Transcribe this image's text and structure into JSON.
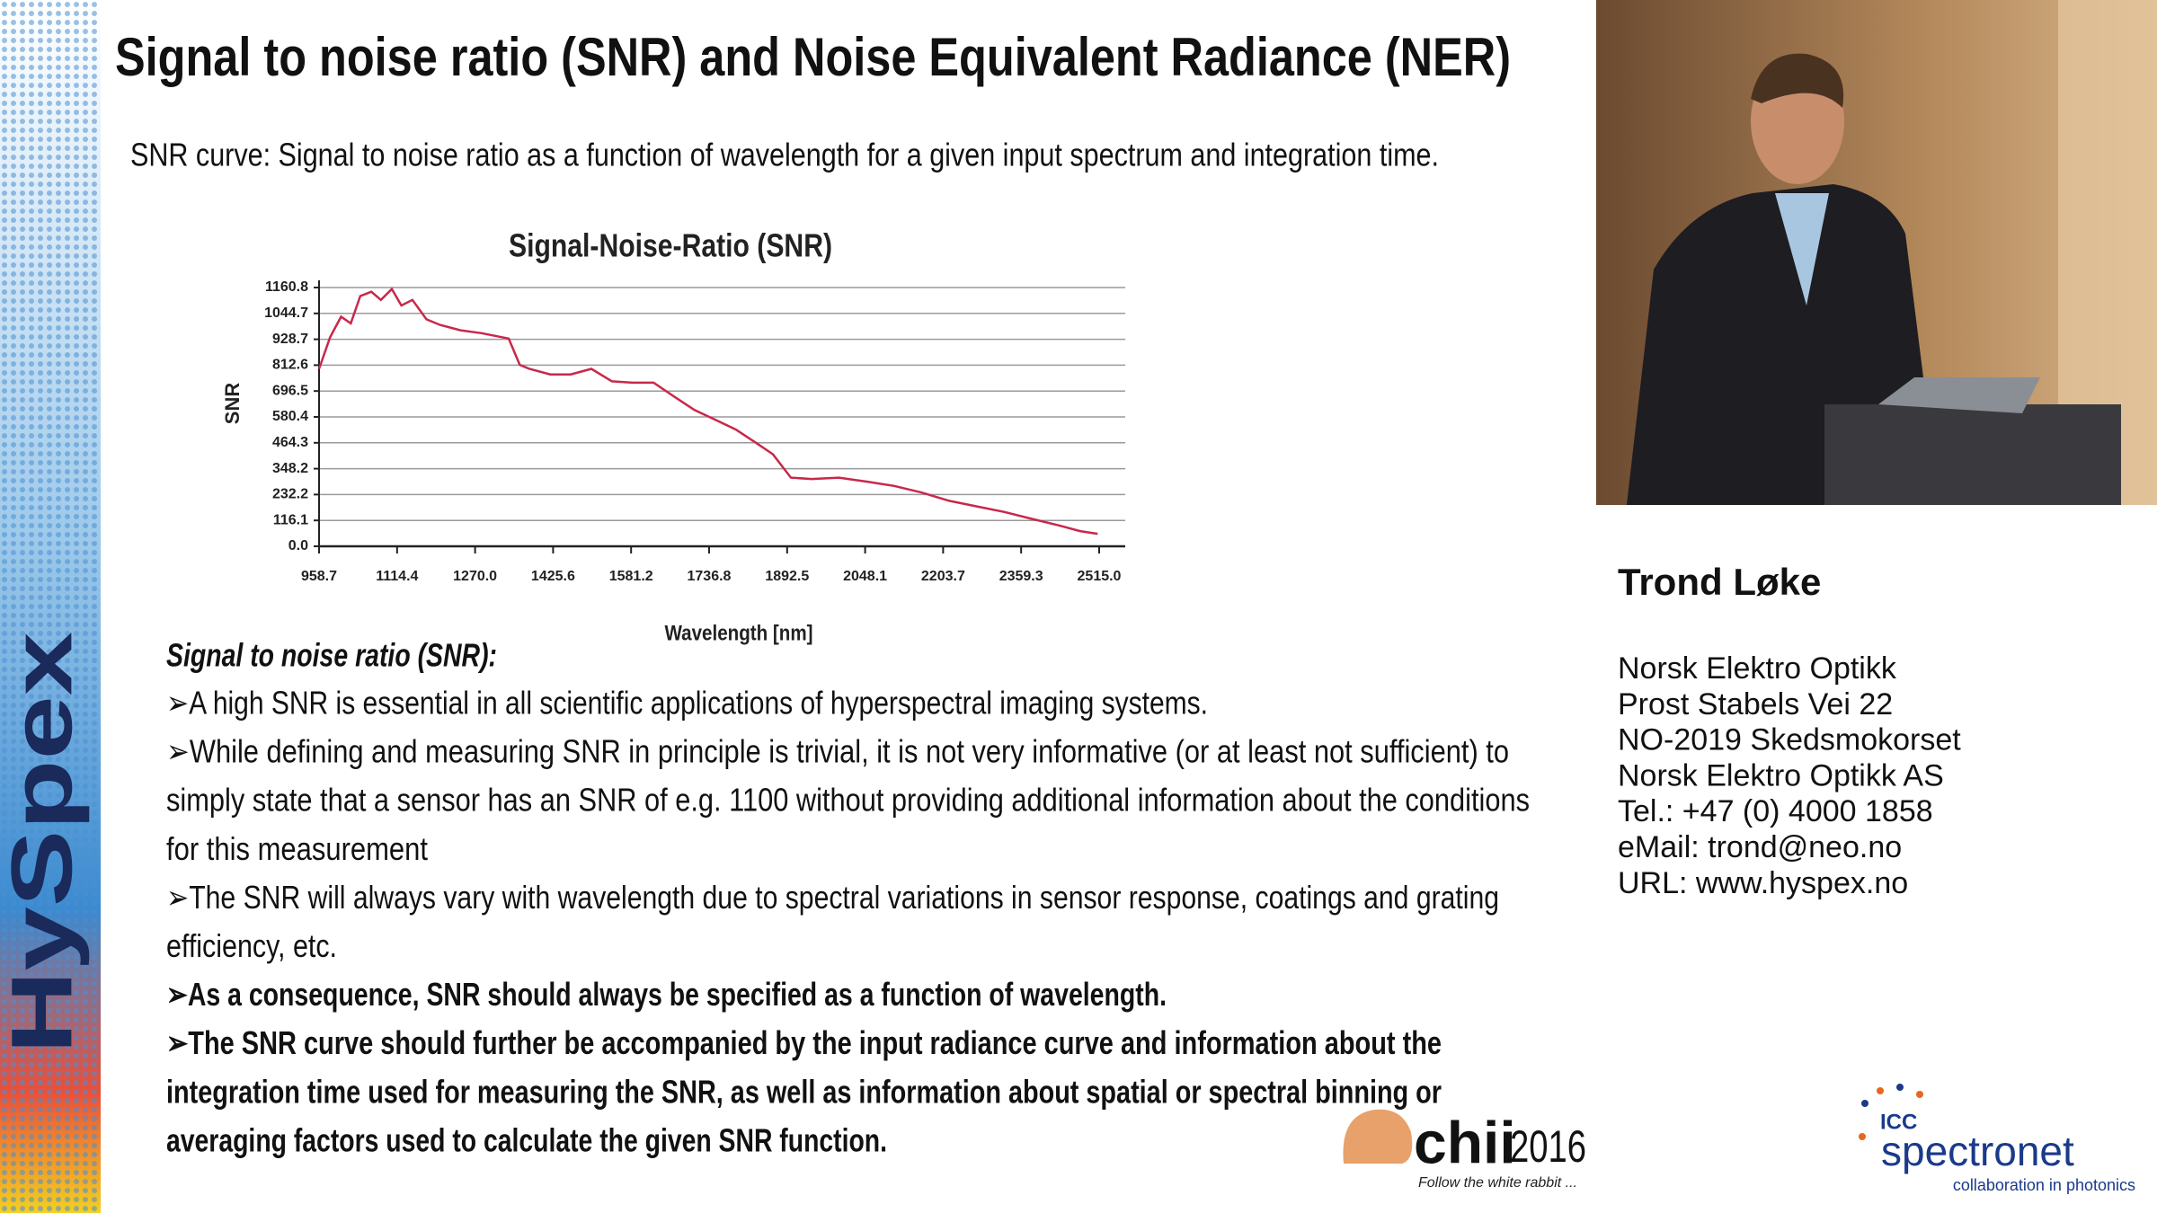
{
  "slide": {
    "title": "Signal to noise ratio (SNR) and Noise Equivalent Radiance (NER)",
    "subtitle": "SNR curve: Signal to noise ratio as a function of wavelength for a given input spectrum and integration time.",
    "section_heading": "Signal to noise ratio (SNR):",
    "lines": [
      {
        "text": "➢A high SNR is essential in all scientific applications of hyperspectral imaging systems.",
        "bold": false
      },
      {
        "text": "➢While defining and measuring SNR in principle is trivial, it is not very informative (or at least not sufficient) to",
        "bold": false
      },
      {
        "text": "simply state that a sensor has an SNR of e.g. 1100 without providing additional information about the conditions",
        "bold": false
      },
      {
        "text": "for this measurement",
        "bold": false
      },
      {
        "text": "➢The SNR will always vary with wavelength due to spectral variations in sensor response, coatings and grating",
        "bold": false
      },
      {
        "text": "efficiency, etc.",
        "bold": false
      },
      {
        "text": "➢As a consequence, SNR should always be specified as a function of wavelength.",
        "bold": true
      },
      {
        "text": "➢The SNR curve should further be accompanied by the input radiance curve and information about the",
        "bold": true
      },
      {
        "text": "integration time used for measuring the SNR, as well as information about spatial or spectral binning or",
        "bold": true
      },
      {
        "text": "averaging factors used to calculate the given SNR function.",
        "bold": true
      }
    ],
    "sidebar_brand": "HySpex"
  },
  "chart_data": {
    "type": "line",
    "title": "Signal-Noise-Ratio (SNR)",
    "x_label": "Wavelength [nm]",
    "y_label": "SNR",
    "color": "#c8284a",
    "grid": true,
    "xlim": [
      958.7,
      2567
    ],
    "ylim": [
      0,
      1160.8
    ],
    "xticks": [
      958.7,
      1114.4,
      {
        "value": 1270,
        "label": "1270.0"
      },
      1425.6,
      1581.2,
      1736.8,
      1892.5,
      2048.1,
      2203.7,
      2359.3,
      {
        "value": 2515,
        "label": "2515.0"
      }
    ],
    "yticks": [
      {
        "value": 0,
        "label": "0.0"
      },
      116.1,
      232.2,
      348.2,
      464.3,
      580.4,
      696.5,
      812.6,
      928.7,
      1044.7,
      1160.8
    ],
    "x": [
      958.7,
      980.7,
      1002.6,
      1022,
      1041,
      1063,
      1082,
      1104,
      1123,
      1145,
      1173,
      1200,
      1241,
      1283,
      1337,
      1359,
      1378,
      1420,
      1461,
      1502,
      1543,
      1584,
      1626,
      1667,
      1708,
      1749,
      1790,
      1831,
      1864,
      1900,
      1941,
      1996,
      2051,
      2106,
      2161,
      2216,
      2271,
      2326,
      2381,
      2436,
      2477,
      2512
    ],
    "values": [
      796,
      938,
      1030,
      1000,
      1123,
      1142,
      1105,
      1154,
      1080,
      1105,
      1018,
      993,
      969,
      956,
      932,
      814,
      796,
      771,
      771,
      796,
      740,
      734,
      734,
      672,
      611,
      568,
      524,
      463,
      413,
      308,
      302,
      308,
      290,
      271,
      241,
      204,
      179,
      154,
      123,
      93,
      68,
      56
    ]
  },
  "speaker": {
    "name": "Trond Løke",
    "contact": [
      "Norsk Elektro Optikk",
      "Prost Stabels Vei 22",
      "NO-2019 Skedsmokorset",
      "Norsk Elektro Optikk AS",
      "Tel.: +47 (0) 4000 1858",
      "eMail: trond@neo.no",
      "URL: www.hyspex.no"
    ]
  },
  "logos": {
    "chii_word": "chii",
    "chii_year": "2016",
    "chii_tagline": "Follow the white rabbit ...",
    "icc": "ICC",
    "spectronet": "spectronet",
    "spectronet_tagline": "collaboration in photonics"
  }
}
